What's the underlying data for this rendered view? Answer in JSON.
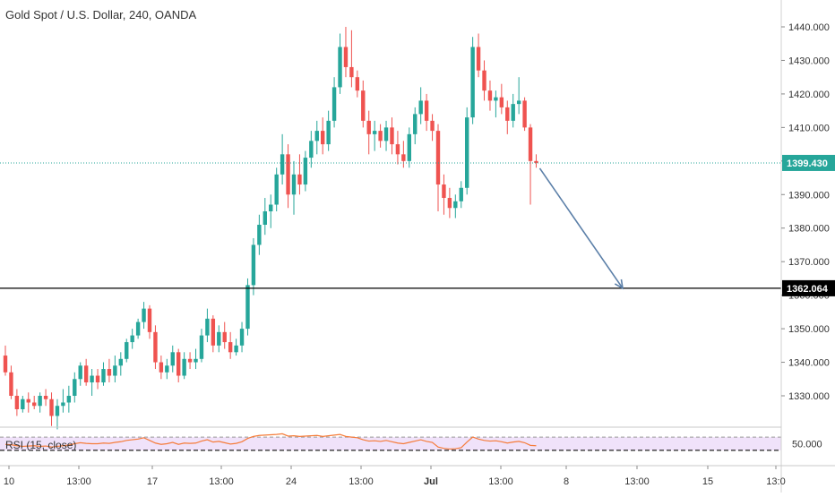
{
  "header": {
    "title": "Gold Spot / U.S. Dollar, 240, OANDA"
  },
  "colors": {
    "up": "#26a69a",
    "down": "#ef5350",
    "last_line": "#26a69a",
    "level_line": "#000000",
    "arrow": "#5b7fa8",
    "rsi_line": "#f57c3a",
    "rsi_band": "#f0e2fa",
    "axis_text": "#333333"
  },
  "chart_data": [
    {
      "type": "candlestick",
      "title": "Gold Spot / U.S. Dollar, 240, OANDA",
      "y_axis": {
        "ticks": [
          1330,
          1340,
          1350,
          1360,
          1370,
          1380,
          1390,
          1400,
          1410,
          1420,
          1430,
          1440
        ],
        "tick_labels": [
          "1330.000",
          "1340.000",
          "1350.000",
          "1360.000",
          "1370.000",
          "1380.000",
          "1390.000",
          "1400.000",
          "1410.000",
          "1420.000",
          "1430.000",
          "1440.000"
        ],
        "range": [
          1318,
          1445
        ]
      },
      "x_axis": {
        "tick_labels": [
          "10",
          "13:00",
          "17",
          "13:00",
          "24",
          "13:00",
          "Jul",
          "13:00",
          "8",
          "13:00",
          "15",
          "13:0"
        ]
      },
      "last_price": {
        "value": 1399.43,
        "label": "1399.430"
      },
      "horizontal_level": {
        "value": 1362.064,
        "label": "1362.064"
      },
      "arrow": {
        "from": 1399.43,
        "to": 1362.064
      },
      "ohlc": [
        [
          1342,
          1345,
          1336,
          1337
        ],
        [
          1337,
          1339,
          1329,
          1330
        ],
        [
          1330,
          1332,
          1324,
          1326
        ],
        [
          1326,
          1330,
          1325,
          1329
        ],
        [
          1329,
          1331,
          1325,
          1328
        ],
        [
          1328,
          1330,
          1326,
          1327
        ],
        [
          1327,
          1331,
          1325,
          1330
        ],
        [
          1330,
          1332,
          1327,
          1329
        ],
        [
          1329,
          1331,
          1321,
          1324
        ],
        [
          1324,
          1329,
          1320,
          1327
        ],
        [
          1327,
          1332,
          1325,
          1328
        ],
        [
          1328,
          1333,
          1325,
          1330
        ],
        [
          1330,
          1337,
          1328,
          1335
        ],
        [
          1335,
          1340,
          1333,
          1339
        ],
        [
          1339,
          1341,
          1333,
          1334
        ],
        [
          1334,
          1338,
          1330,
          1336
        ],
        [
          1336,
          1338,
          1332,
          1334
        ],
        [
          1334,
          1340,
          1333,
          1338
        ],
        [
          1338,
          1341,
          1334,
          1336
        ],
        [
          1336,
          1342,
          1334,
          1339
        ],
        [
          1339,
          1343,
          1336,
          1341
        ],
        [
          1341,
          1347,
          1340,
          1346
        ],
        [
          1346,
          1350,
          1344,
          1348
        ],
        [
          1348,
          1353,
          1347,
          1352
        ],
        [
          1352,
          1358,
          1350,
          1356
        ],
        [
          1356,
          1357,
          1347,
          1349
        ],
        [
          1349,
          1351,
          1338,
          1340
        ],
        [
          1340,
          1342,
          1335,
          1337
        ],
        [
          1337,
          1341,
          1335,
          1339
        ],
        [
          1339,
          1345,
          1337,
          1343
        ],
        [
          1343,
          1344,
          1334,
          1336
        ],
        [
          1336,
          1343,
          1335,
          1341
        ],
        [
          1341,
          1343,
          1338,
          1340
        ],
        [
          1340,
          1344,
          1338,
          1341
        ],
        [
          1341,
          1350,
          1340,
          1348
        ],
        [
          1348,
          1356,
          1346,
          1353
        ],
        [
          1353,
          1354,
          1343,
          1345
        ],
        [
          1345,
          1351,
          1343,
          1349
        ],
        [
          1349,
          1352,
          1344,
          1346
        ],
        [
          1346,
          1349,
          1341,
          1343
        ],
        [
          1343,
          1347,
          1342,
          1345
        ],
        [
          1345,
          1352,
          1343,
          1350
        ],
        [
          1350,
          1365,
          1348,
          1363
        ],
        [
          1363,
          1377,
          1360,
          1375
        ],
        [
          1375,
          1384,
          1372,
          1381
        ],
        [
          1381,
          1389,
          1378,
          1385
        ],
        [
          1385,
          1390,
          1380,
          1387
        ],
        [
          1387,
          1398,
          1385,
          1396
        ],
        [
          1396,
          1408,
          1393,
          1402
        ],
        [
          1402,
          1405,
          1386,
          1390
        ],
        [
          1390,
          1400,
          1384,
          1396
        ],
        [
          1396,
          1402,
          1390,
          1393
        ],
        [
          1393,
          1403,
          1391,
          1401
        ],
        [
          1401,
          1409,
          1398,
          1406
        ],
        [
          1406,
          1412,
          1402,
          1409
        ],
        [
          1409,
          1413,
          1402,
          1405
        ],
        [
          1405,
          1415,
          1403,
          1412
        ],
        [
          1412,
          1425,
          1410,
          1422
        ],
        [
          1422,
          1438,
          1420,
          1434
        ],
        [
          1434,
          1440,
          1425,
          1428
        ],
        [
          1428,
          1439,
          1422,
          1425
        ],
        [
          1425,
          1427,
          1419,
          1421
        ],
        [
          1421,
          1424,
          1410,
          1412
        ],
        [
          1412,
          1415,
          1402,
          1408
        ],
        [
          1408,
          1412,
          1403,
          1409
        ],
        [
          1409,
          1411,
          1404,
          1406
        ],
        [
          1406,
          1412,
          1403,
          1410
        ],
        [
          1410,
          1413,
          1402,
          1405
        ],
        [
          1405,
          1409,
          1399,
          1402
        ],
        [
          1402,
          1406,
          1398,
          1400
        ],
        [
          1400,
          1410,
          1398,
          1408
        ],
        [
          1408,
          1416,
          1405,
          1414
        ],
        [
          1414,
          1422,
          1411,
          1418
        ],
        [
          1418,
          1420,
          1409,
          1412
        ],
        [
          1412,
          1414,
          1406,
          1409
        ],
        [
          1409,
          1411,
          1385,
          1393
        ],
        [
          1393,
          1396,
          1384,
          1389
        ],
        [
          1389,
          1392,
          1383,
          1386
        ],
        [
          1386,
          1390,
          1383,
          1388
        ],
        [
          1388,
          1394,
          1386,
          1392
        ],
        [
          1392,
          1416,
          1390,
          1413
        ],
        [
          1413,
          1437,
          1411,
          1434
        ],
        [
          1434,
          1438,
          1425,
          1427
        ],
        [
          1427,
          1430,
          1418,
          1421
        ],
        [
          1421,
          1424,
          1415,
          1418
        ],
        [
          1418,
          1421,
          1413,
          1419
        ],
        [
          1419,
          1423,
          1414,
          1416
        ],
        [
          1416,
          1418,
          1408,
          1412
        ],
        [
          1412,
          1420,
          1410,
          1417
        ],
        [
          1417,
          1425,
          1414,
          1418
        ],
        [
          1418,
          1419,
          1409,
          1410
        ],
        [
          1410,
          1411,
          1387,
          1400
        ],
        [
          1400,
          1402,
          1398,
          1399.43
        ]
      ]
    },
    {
      "type": "line",
      "title": "RSI (15, close)",
      "y_axis": {
        "ticks": [
          50
        ],
        "tick_labels": [
          "50.000"
        ],
        "range": [
          0,
          100
        ]
      },
      "bands": [
        30,
        70
      ],
      "series": [
        {
          "values": [
            48,
            47,
            44,
            42,
            43,
            44,
            42,
            43,
            40,
            42,
            44,
            46,
            50,
            53,
            51,
            50,
            50,
            52,
            51,
            54,
            56,
            60,
            62,
            64,
            68,
            60,
            52,
            48,
            50,
            54,
            48,
            52,
            51,
            52,
            58,
            62,
            55,
            57,
            53,
            49,
            51,
            56,
            66,
            72,
            75,
            76,
            77,
            78,
            80,
            73,
            74,
            72,
            73,
            74,
            75,
            72,
            74,
            76,
            78,
            72,
            70,
            68,
            62,
            58,
            59,
            57,
            60,
            56,
            52,
            50,
            54,
            58,
            62,
            57,
            54,
            40,
            36,
            34,
            35,
            38,
            55,
            70,
            64,
            60,
            58,
            59,
            56,
            52,
            55,
            57,
            53,
            45,
            44
          ]
        }
      ]
    }
  ]
}
